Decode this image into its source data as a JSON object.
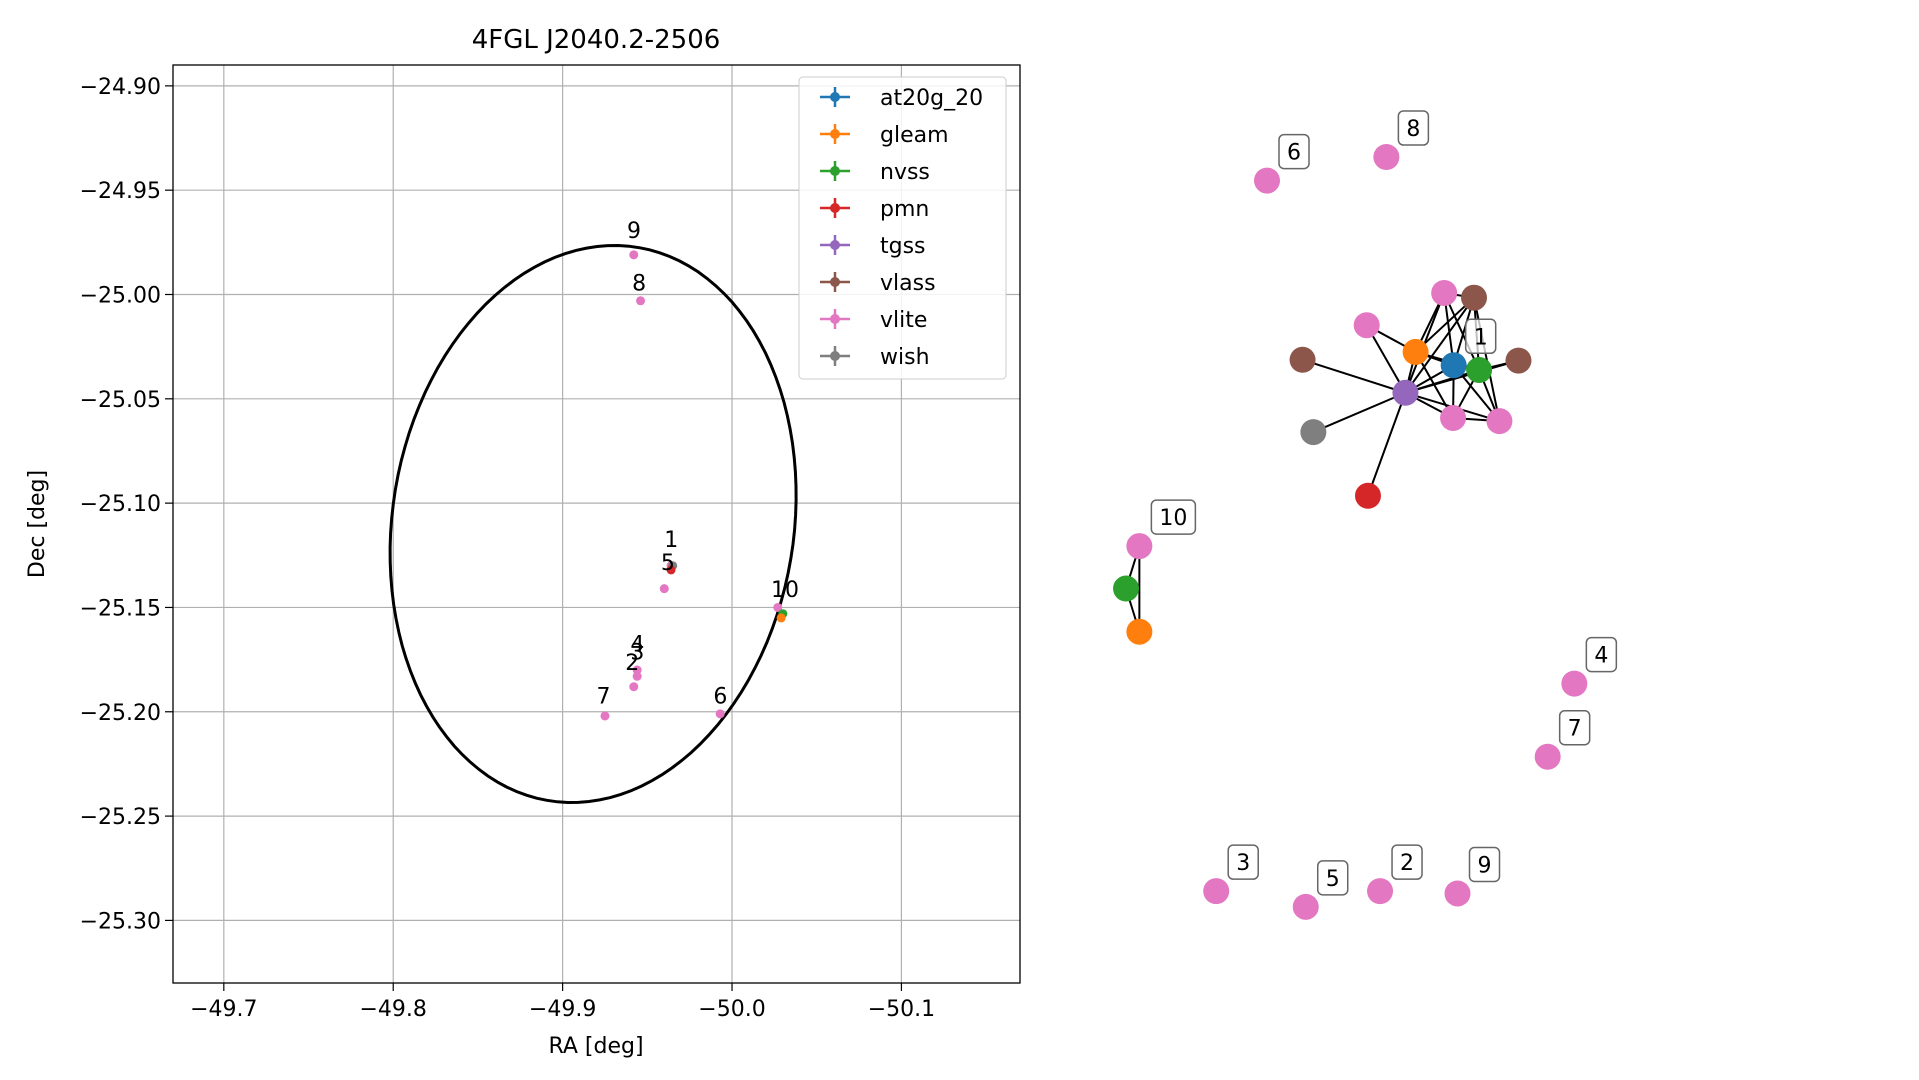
{
  "chart_data": [
    {
      "type": "scatter",
      "title": "4FGL J2040.2-2506",
      "xlabel": "RA [deg]",
      "ylabel": "Dec [deg]",
      "xlim": [
        -50.17,
        -49.67
      ],
      "ylim": [
        -25.33,
        -24.89
      ],
      "x_inverted": true,
      "grid": true,
      "xticks": [
        -50.1,
        -50.0,
        -49.9,
        -49.8,
        -49.7
      ],
      "xtick_labels": [
        "−50.1",
        "−50.0",
        "−49.9",
        "−49.8",
        "−49.7"
      ],
      "yticks": [
        -24.9,
        -24.95,
        -25.0,
        -25.05,
        -25.1,
        -25.15,
        -25.2,
        -25.25,
        -25.3
      ],
      "ytick_labels": [
        "−24.90",
        "−24.95",
        "−25.00",
        "−25.05",
        "−25.10",
        "−25.15",
        "−25.20",
        "−25.25",
        "−25.30"
      ],
      "legend_position": "top-right",
      "legend": [
        {
          "name": "at20g_20",
          "color": "#1f77b4"
        },
        {
          "name": "gleam",
          "color": "#ff7f0e"
        },
        {
          "name": "nvss",
          "color": "#2ca02c"
        },
        {
          "name": "pmn",
          "color": "#d62728"
        },
        {
          "name": "tgss",
          "color": "#9467bd"
        },
        {
          "name": "vlass",
          "color": "#8c564b"
        },
        {
          "name": "vlite",
          "color": "#e377c2"
        },
        {
          "name": "wish",
          "color": "#7f7f7f"
        }
      ],
      "ellipse": {
        "center": [
          -49.918,
          -25.11
        ],
        "semi_axes": [
          0.117,
          0.136
        ],
        "rotation_deg": 22
      },
      "points": [
        {
          "survey": "vlite",
          "ra": -49.964,
          "dec": -25.13
        },
        {
          "survey": "wish",
          "ra": -49.965,
          "dec": -25.13
        },
        {
          "survey": "pmn",
          "ra": -49.964,
          "dec": -25.132
        },
        {
          "survey": "vlite",
          "ra": -49.96,
          "dec": -25.141
        },
        {
          "survey": "vlite",
          "ra": -49.944,
          "dec": -25.18
        },
        {
          "survey": "vlite",
          "ra": -49.944,
          "dec": -25.183
        },
        {
          "survey": "vlite",
          "ra": -49.942,
          "dec": -25.188
        },
        {
          "survey": "vlite",
          "ra": -49.925,
          "dec": -25.202
        },
        {
          "survey": "vlite",
          "ra": -49.993,
          "dec": -25.201
        },
        {
          "survey": "vlite",
          "ra": -49.942,
          "dec": -24.981
        },
        {
          "survey": "vlite",
          "ra": -49.946,
          "dec": -25.003
        },
        {
          "survey": "vlite",
          "ra": -50.027,
          "dec": -25.15
        },
        {
          "survey": "nvss",
          "ra": -50.03,
          "dec": -25.153
        },
        {
          "survey": "gleam",
          "ra": -50.029,
          "dec": -25.155
        }
      ],
      "labels": [
        {
          "text": "1",
          "ra": -49.96,
          "dec": -25.121
        },
        {
          "text": "5",
          "ra": -49.958,
          "dec": -25.132
        },
        {
          "text": "4",
          "ra": -49.94,
          "dec": -25.171
        },
        {
          "text": "3",
          "ra": -49.94,
          "dec": -25.175
        },
        {
          "text": "2",
          "ra": -49.937,
          "dec": -25.18
        },
        {
          "text": "7",
          "ra": -49.92,
          "dec": -25.196
        },
        {
          "text": "6",
          "ra": -49.989,
          "dec": -25.196
        },
        {
          "text": "9",
          "ra": -49.938,
          "dec": -24.973
        },
        {
          "text": "8",
          "ra": -49.941,
          "dec": -24.998
        },
        {
          "text": "10",
          "ra": -50.023,
          "dec": -25.145
        }
      ]
    },
    {
      "type": "network",
      "nodes": [
        {
          "id": "n1",
          "survey": "at20g_20",
          "color": "#1f77b4",
          "x": 0.557,
          "y": 0.735
        },
        {
          "id": "n2",
          "survey": "gleam",
          "color": "#ff7f0e",
          "x": 0.497,
          "y": 0.752
        },
        {
          "id": "n3",
          "survey": "nvss",
          "color": "#2ca02c",
          "x": 0.597,
          "y": 0.729
        },
        {
          "id": "n4",
          "survey": "tgss",
          "color": "#9467bd",
          "x": 0.481,
          "y": 0.7
        },
        {
          "id": "n5",
          "survey": "pmn",
          "color": "#d62728",
          "x": 0.422,
          "y": 0.569
        },
        {
          "id": "n6",
          "survey": "wish",
          "color": "#7f7f7f",
          "x": 0.336,
          "y": 0.65
        },
        {
          "id": "n7",
          "survey": "vlass",
          "color": "#8c564b",
          "x": 0.319,
          "y": 0.742
        },
        {
          "id": "n8",
          "survey": "vlass",
          "color": "#8c564b",
          "x": 0.589,
          "y": 0.821
        },
        {
          "id": "n9",
          "survey": "vlass",
          "color": "#8c564b",
          "x": 0.659,
          "y": 0.741
        },
        {
          "id": "n10",
          "survey": "vlite",
          "color": "#e377c2",
          "x": 0.42,
          "y": 0.786
        },
        {
          "id": "n11",
          "survey": "vlite",
          "color": "#e377c2",
          "x": 0.542,
          "y": 0.827
        },
        {
          "id": "n12",
          "survey": "vlite",
          "color": "#e377c2",
          "x": 0.556,
          "y": 0.668
        },
        {
          "id": "n13",
          "survey": "vlite",
          "color": "#e377c2",
          "x": 0.629,
          "y": 0.664
        },
        {
          "id": "n14",
          "survey": "vlite",
          "color": "#e377c2",
          "x": 0.451,
          "y": 1.0
        },
        {
          "id": "n15",
          "survey": "vlite",
          "color": "#e377c2",
          "x": 0.263,
          "y": 0.97
        },
        {
          "id": "n16",
          "survey": "gleam",
          "color": "#ff7f0e",
          "x": 0.062,
          "y": 0.396
        },
        {
          "id": "n17",
          "survey": "nvss",
          "color": "#2ca02c",
          "x": 0.041,
          "y": 0.451
        },
        {
          "id": "n18",
          "survey": "vlite",
          "color": "#e377c2",
          "x": 0.062,
          "y": 0.505
        },
        {
          "id": "n19",
          "survey": "vlite",
          "color": "#e377c2",
          "x": 0.747,
          "y": 0.33
        },
        {
          "id": "n20",
          "survey": "vlite",
          "color": "#e377c2",
          "x": 0.705,
          "y": 0.237
        },
        {
          "id": "n21",
          "survey": "vlite",
          "color": "#e377c2",
          "x": 0.183,
          "y": 0.066
        },
        {
          "id": "n22",
          "survey": "vlite",
          "color": "#e377c2",
          "x": 0.324,
          "y": 0.046
        },
        {
          "id": "n23",
          "survey": "vlite",
          "color": "#e377c2",
          "x": 0.441,
          "y": 0.066
        },
        {
          "id": "n24",
          "survey": "vlite",
          "color": "#e377c2",
          "x": 0.563,
          "y": 0.063
        }
      ],
      "edges": [
        [
          "n4",
          "n1"
        ],
        [
          "n4",
          "n2"
        ],
        [
          "n4",
          "n3"
        ],
        [
          "n4",
          "n5"
        ],
        [
          "n4",
          "n6"
        ],
        [
          "n4",
          "n7"
        ],
        [
          "n4",
          "n8"
        ],
        [
          "n4",
          "n9"
        ],
        [
          "n4",
          "n10"
        ],
        [
          "n4",
          "n11"
        ],
        [
          "n4",
          "n12"
        ],
        [
          "n4",
          "n13"
        ],
        [
          "n2",
          "n1"
        ],
        [
          "n2",
          "n3"
        ],
        [
          "n2",
          "n10"
        ],
        [
          "n2",
          "n11"
        ],
        [
          "n2",
          "n8"
        ],
        [
          "n2",
          "n12"
        ],
        [
          "n1",
          "n3"
        ],
        [
          "n1",
          "n11"
        ],
        [
          "n1",
          "n8"
        ],
        [
          "n1",
          "n12"
        ],
        [
          "n1",
          "n13"
        ],
        [
          "n3",
          "n11"
        ],
        [
          "n3",
          "n8"
        ],
        [
          "n3",
          "n9"
        ],
        [
          "n3",
          "n13"
        ],
        [
          "n3",
          "n12"
        ],
        [
          "n11",
          "n8"
        ],
        [
          "n12",
          "n13"
        ],
        [
          "n8",
          "n13"
        ],
        [
          "n17",
          "n16"
        ],
        [
          "n17",
          "n18"
        ],
        [
          "n16",
          "n18"
        ]
      ],
      "labels": [
        {
          "text": "1",
          "node": "n1"
        },
        {
          "text": "10",
          "node": "n18"
        },
        {
          "text": "4",
          "node": "n19"
        },
        {
          "text": "7",
          "node": "n20"
        },
        {
          "text": "6",
          "node": "n15"
        },
        {
          "text": "3",
          "node": "n21"
        },
        {
          "text": "5",
          "node": "n22"
        },
        {
          "text": "2",
          "node": "n23"
        },
        {
          "text": "8",
          "node": "n14"
        },
        {
          "text": "9",
          "node": "n24"
        }
      ]
    }
  ]
}
